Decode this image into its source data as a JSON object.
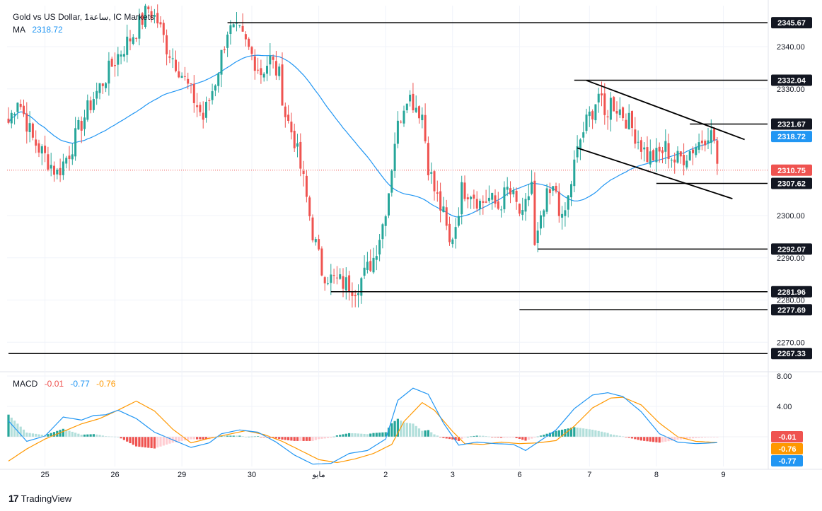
{
  "legend": {
    "symbol": "Gold vs US Dollar, 1ساعة, IC Markets",
    "ma_label": "MA",
    "ma_value": "2318.72",
    "macd_label": "MACD",
    "macd_hist": "-0.01",
    "macd_line": "-0.77",
    "macd_signal": "-0.76"
  },
  "brand": {
    "name": "TradingView",
    "logo": "17"
  },
  "colors": {
    "up": "#26a69a",
    "down": "#ef5350",
    "ma": "#2196f3",
    "macd": "#2196f3",
    "signal": "#ff9800",
    "hist_up_strong": "#26a69a",
    "hist_up_weak": "#b2dfdb",
    "hist_down_strong": "#ef5350",
    "hist_down_weak": "#ffcdd2",
    "level": "#000000",
    "current_price": "#ef5350"
  },
  "chart_data": {
    "type": "candlestick",
    "title": "Gold vs US Dollar, 1ساعة, IC Markets",
    "price_ticks": [
      2340,
      2330,
      2300,
      2290,
      2280,
      2270
    ],
    "price_range": [
      2262,
      2351
    ],
    "x_labels": [
      {
        "label": "25",
        "bar": 12
      },
      {
        "label": "26",
        "bar": 35
      },
      {
        "label": "29",
        "bar": 57
      },
      {
        "label": "30",
        "bar": 80
      },
      {
        "label": "مايو",
        "bar": 102
      },
      {
        "label": "2",
        "bar": 124
      },
      {
        "label": "3",
        "bar": 146
      },
      {
        "label": "6",
        "bar": 168
      },
      {
        "label": "7",
        "bar": 191
      },
      {
        "label": "8",
        "bar": 213
      },
      {
        "label": "9",
        "bar": 235
      }
    ],
    "bars_total": 250,
    "price_anchors": [
      [
        0,
        2322
      ],
      [
        3,
        2328
      ],
      [
        8,
        2318
      ],
      [
        12,
        2314
      ],
      [
        16,
        2310
      ],
      [
        20,
        2315
      ],
      [
        24,
        2322
      ],
      [
        28,
        2328
      ],
      [
        32,
        2333
      ],
      [
        36,
        2338
      ],
      [
        39,
        2341
      ],
      [
        42,
        2344
      ],
      [
        46,
        2349
      ],
      [
        49,
        2346
      ],
      [
        52,
        2340
      ],
      [
        56,
        2335
      ],
      [
        60,
        2329
      ],
      [
        64,
        2323
      ],
      [
        68,
        2332
      ],
      [
        72,
        2344
      ],
      [
        76,
        2343
      ],
      [
        80,
        2338
      ],
      [
        83,
        2334
      ],
      [
        86,
        2337
      ],
      [
        89,
        2333
      ],
      [
        91,
        2324
      ],
      [
        94,
        2318
      ],
      [
        97,
        2308
      ],
      [
        100,
        2296
      ],
      [
        103,
        2287
      ],
      [
        106,
        2285
      ],
      [
        110,
        2284
      ],
      [
        114,
        2283
      ],
      [
        117,
        2286
      ],
      [
        120,
        2290
      ],
      [
        123,
        2298
      ],
      [
        125,
        2306
      ],
      [
        127,
        2318
      ],
      [
        129,
        2324
      ],
      [
        131,
        2329
      ],
      [
        133,
        2327
      ],
      [
        136,
        2324
      ],
      [
        138,
        2312
      ],
      [
        140,
        2306
      ],
      [
        143,
        2300
      ],
      [
        145,
        2293
      ],
      [
        147,
        2298
      ],
      [
        149,
        2306
      ],
      [
        152,
        2306
      ],
      [
        155,
        2303
      ],
      [
        158,
        2304
      ],
      [
        161,
        2302
      ],
      [
        164,
        2306
      ],
      [
        166,
        2304
      ],
      [
        169,
        2299
      ],
      [
        172,
        2308
      ],
      [
        173,
        2292
      ],
      [
        175,
        2298
      ],
      [
        177,
        2304
      ],
      [
        180,
        2306
      ],
      [
        182,
        2298
      ],
      [
        184,
        2304
      ],
      [
        186,
        2312
      ],
      [
        188,
        2318
      ],
      [
        190,
        2322
      ],
      [
        192,
        2325
      ],
      [
        194,
        2329
      ],
      [
        196,
        2323
      ],
      [
        198,
        2327
      ],
      [
        201,
        2325
      ],
      [
        204,
        2322
      ],
      [
        207,
        2318
      ],
      [
        210,
        2314
      ],
      [
        213,
        2314
      ],
      [
        216,
        2316
      ],
      [
        219,
        2313
      ],
      [
        222,
        2314
      ],
      [
        225,
        2316
      ],
      [
        228,
        2318
      ],
      [
        230,
        2320
      ],
      [
        232,
        2318
      ],
      [
        233,
        2312
      ]
    ],
    "levels": [
      {
        "value": "2345.67",
        "price": 2345.67,
        "from_bar": 72
      },
      {
        "value": "2332.04",
        "price": 2332.04,
        "from_bar": 186
      },
      {
        "value": "2321.67",
        "price": 2321.67,
        "from_bar": 224
      },
      {
        "value": "2307.62",
        "price": 2307.62,
        "from_bar": 213
      },
      {
        "value": "2292.07",
        "price": 2292.07,
        "from_bar": 174
      },
      {
        "value": "2281.96",
        "price": 2281.96,
        "from_bar": 106
      },
      {
        "value": "2277.69",
        "price": 2277.69,
        "from_bar": 168
      },
      {
        "value": "2267.33",
        "price": 2267.33,
        "from_bar": 0
      }
    ],
    "ma_label": {
      "value": "2318.72",
      "price": 2318.72
    },
    "current_price": {
      "value": "2310.75",
      "price": 2310.75
    },
    "channel": [
      {
        "from": [
          190,
          2332.0
        ],
        "to": [
          242,
          2318.0
        ]
      },
      {
        "from": [
          187,
          2316.0
        ],
        "to": [
          238,
          2304.0
        ]
      }
    ],
    "macd_ticks": [
      8.0,
      4.0
    ],
    "macd_range": [
      -4,
      9
    ],
    "macd_labels": [
      {
        "value": "-0.01",
        "level": -0.01,
        "color": "#ef5350"
      },
      {
        "value": "-0.76",
        "level": -0.76,
        "color": "#ff9800"
      },
      {
        "value": "-0.77",
        "level": -0.77,
        "color": "#2196f3"
      }
    ],
    "macd_series": {
      "macd": [
        [
          0,
          2.1
        ],
        [
          6,
          -0.6
        ],
        [
          12,
          0.1
        ],
        [
          18,
          2.6
        ],
        [
          24,
          2.2
        ],
        [
          28,
          2.8
        ],
        [
          32,
          2.9
        ],
        [
          36,
          3.5
        ],
        [
          42,
          2.4
        ],
        [
          48,
          0.6
        ],
        [
          54,
          -0.4
        ],
        [
          60,
          -1.4
        ],
        [
          66,
          -0.8
        ],
        [
          70,
          0.4
        ],
        [
          76,
          0.9
        ],
        [
          82,
          0.6
        ],
        [
          88,
          -0.7
        ],
        [
          94,
          -2.4
        ],
        [
          100,
          -3.6
        ],
        [
          106,
          -3.5
        ],
        [
          112,
          -2.2
        ],
        [
          118,
          -1.8
        ],
        [
          124,
          -0.3
        ],
        [
          128,
          4.8
        ],
        [
          133,
          6.4
        ],
        [
          138,
          5.6
        ],
        [
          143,
          1.8
        ],
        [
          148,
          -1.1
        ],
        [
          154,
          -0.7
        ],
        [
          160,
          -0.9
        ],
        [
          166,
          -1.0
        ],
        [
          170,
          -1.8
        ],
        [
          176,
          -0.2
        ],
        [
          180,
          0.9
        ],
        [
          186,
          3.7
        ],
        [
          192,
          5.5
        ],
        [
          197,
          5.8
        ],
        [
          202,
          5.3
        ],
        [
          208,
          3.3
        ],
        [
          214,
          0.4
        ],
        [
          220,
          -0.7
        ],
        [
          226,
          -0.9
        ],
        [
          233,
          -0.77
        ]
      ],
      "signal": [
        [
          0,
          -3.2
        ],
        [
          6,
          -1.6
        ],
        [
          12,
          -0.3
        ],
        [
          18,
          0.7
        ],
        [
          24,
          1.7
        ],
        [
          30,
          2.4
        ],
        [
          36,
          3.5
        ],
        [
          42,
          4.7
        ],
        [
          48,
          3.4
        ],
        [
          54,
          1.0
        ],
        [
          60,
          -0.8
        ],
        [
          66,
          -0.2
        ],
        [
          72,
          0.3
        ],
        [
          78,
          0.8
        ],
        [
          84,
          0.3
        ],
        [
          90,
          -0.6
        ],
        [
          96,
          -1.8
        ],
        [
          102,
          -3.0
        ],
        [
          108,
          -3.4
        ],
        [
          114,
          -2.9
        ],
        [
          120,
          -2.2
        ],
        [
          126,
          -1.0
        ],
        [
          130,
          2.0
        ],
        [
          136,
          4.5
        ],
        [
          140,
          3.5
        ],
        [
          146,
          0.7
        ],
        [
          150,
          -0.9
        ],
        [
          156,
          -1.0
        ],
        [
          162,
          -0.7
        ],
        [
          168,
          -0.9
        ],
        [
          174,
          -0.8
        ],
        [
          180,
          -0.5
        ],
        [
          186,
          1.4
        ],
        [
          192,
          3.8
        ],
        [
          198,
          5.1
        ],
        [
          202,
          5.2
        ],
        [
          208,
          4.2
        ],
        [
          214,
          1.8
        ],
        [
          220,
          0.0
        ],
        [
          226,
          -0.6
        ],
        [
          233,
          -0.76
        ]
      ]
    }
  }
}
